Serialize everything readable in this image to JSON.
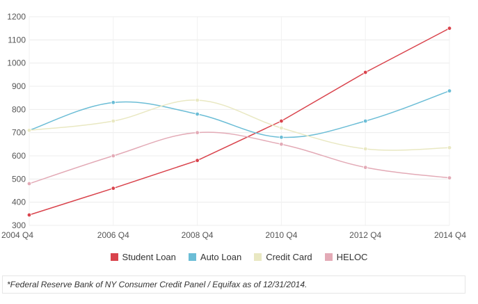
{
  "chart_data": {
    "type": "line",
    "categories": [
      "2004 Q4",
      "2006 Q4",
      "2008 Q4",
      "2010 Q4",
      "2012 Q4",
      "2014 Q4"
    ],
    "ylim": [
      300,
      1200
    ],
    "yticks": [
      300,
      400,
      500,
      600,
      700,
      800,
      900,
      1000,
      1100,
      1200
    ],
    "grid": true,
    "legend_position": "bottom",
    "series": [
      {
        "name": "Student Loan",
        "color": "#d9434c",
        "values": [
          345,
          460,
          580,
          750,
          960,
          1150
        ]
      },
      {
        "name": "Auto Loan",
        "color": "#6bbdd6",
        "values": [
          710,
          830,
          780,
          680,
          750,
          880
        ]
      },
      {
        "name": "Credit Card",
        "color": "#e9e8c2",
        "values": [
          710,
          750,
          840,
          720,
          630,
          635
        ]
      },
      {
        "name": "HELOC",
        "color": "#e3aab6",
        "values": [
          480,
          600,
          700,
          650,
          550,
          505
        ]
      }
    ]
  },
  "footnote": "*Federal Reserve Bank of NY Consumer Credit Panel / Equifax as of 12/31/2014."
}
